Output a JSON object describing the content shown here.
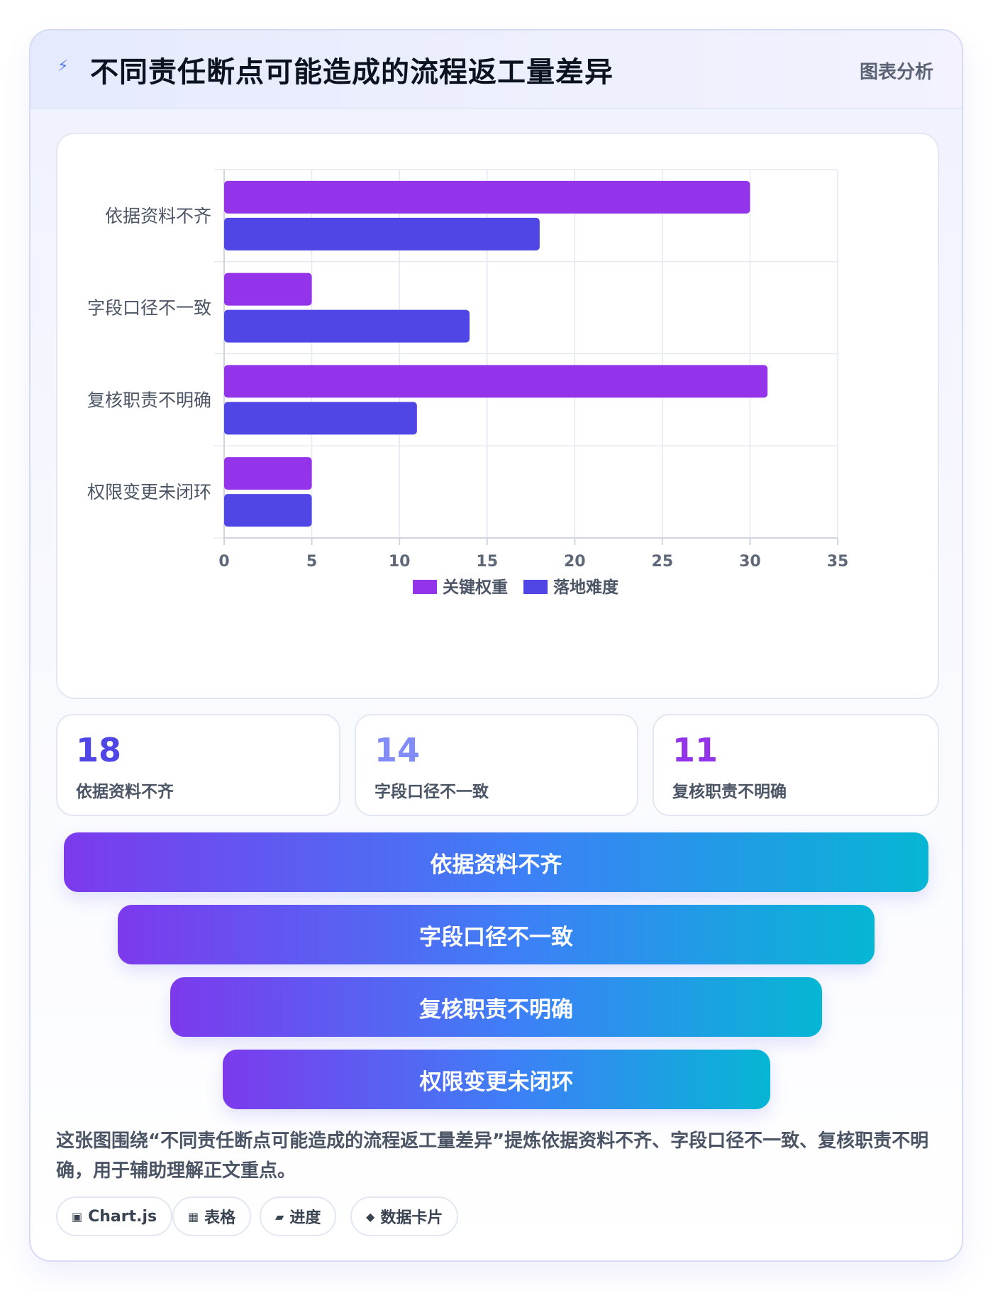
{
  "header": {
    "icon": "lightning-icon",
    "title": "不同责任断点可能造成的流程返工量差异",
    "tag": "图表分析"
  },
  "chart_data": {
    "type": "bar",
    "orientation": "horizontal",
    "categories": [
      "依据资料不齐",
      "字段口径不一致",
      "复核职责不明确",
      "权限变更未闭环"
    ],
    "series": [
      {
        "name": "关键权重",
        "values": [
          30,
          5,
          31,
          5
        ],
        "color": "#9333ea"
      },
      {
        "name": "落地难度",
        "values": [
          18,
          14,
          11,
          5
        ],
        "color": "#4f46e5"
      }
    ],
    "xlim": [
      0,
      35
    ],
    "xticks": [
      0,
      5,
      10,
      15,
      20,
      25,
      30,
      35
    ],
    "grid": true,
    "legend": "bottom"
  },
  "stats": [
    {
      "value": "18",
      "label": "依据资料不齐",
      "color": "#4f46e5"
    },
    {
      "value": "14",
      "label": "字段口径不一致",
      "color": "#818cf8"
    },
    {
      "value": "11",
      "label": "复核职责不明确",
      "color": "#9333ea"
    }
  ],
  "funnel": [
    {
      "label": "依据资料不齐"
    },
    {
      "label": "字段口径不一致"
    },
    {
      "label": "复核职责不明确"
    },
    {
      "label": "权限变更未闭环"
    }
  ],
  "description": "这张图围绕“不同责任断点可能造成的流程返工量差异”提炼依据资料不齐、字段口径不一致、复核职责不明确，用于辅助理解正文重点。",
  "chips": [
    {
      "icon": "▣",
      "label": "Chart.js"
    },
    {
      "icon": "▦",
      "label": "表格"
    },
    {
      "icon": "▰",
      "label": "进度"
    },
    {
      "icon": "◆",
      "label": "数据卡片"
    }
  ]
}
